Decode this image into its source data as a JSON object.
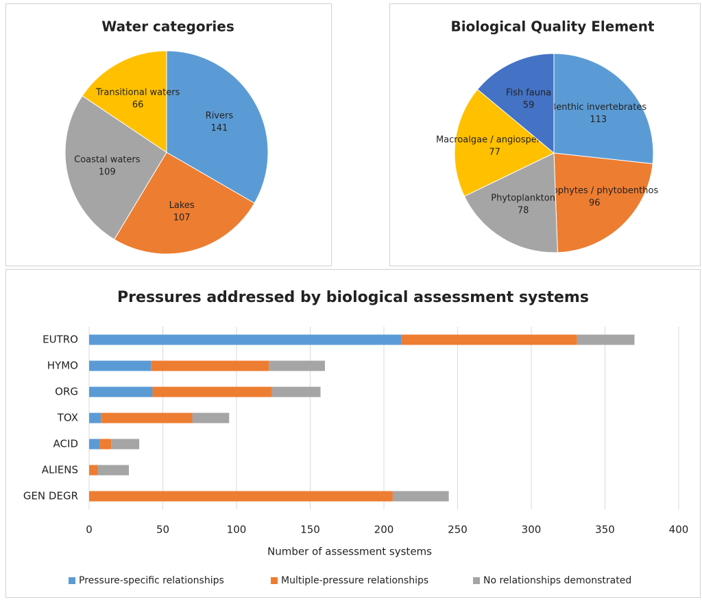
{
  "chart_data": [
    {
      "type": "pie",
      "title": "Water categories",
      "categories": [
        "Rivers",
        "Lakes",
        "Coastal waters",
        "Transitional waters"
      ],
      "values": [
        141,
        107,
        109,
        66
      ],
      "colors": [
        "#5b9bd5",
        "#ed7d31",
        "#a5a5a5",
        "#ffc000"
      ]
    },
    {
      "type": "pie",
      "title": "Biological Quality Element",
      "categories": [
        "Benthic invertebrates",
        "Macrophytes / phytobenthos",
        "Phytoplankton",
        "Macroalgae / angiosperms",
        "Fish fauna"
      ],
      "values": [
        113,
        96,
        78,
        77,
        59
      ],
      "colors": [
        "#5b9bd5",
        "#ed7d31",
        "#a5a5a5",
        "#ffc000",
        "#4472c4"
      ]
    },
    {
      "type": "hbar_stacked",
      "title": "Pressures addressed by biological assessment systems",
      "categories": [
        "EUTRO",
        "HYMO",
        "ORG",
        "TOX",
        "ACID",
        "ALIENS",
        "GEN DEGR"
      ],
      "series": [
        {
          "name": "Pressure-specific relationships",
          "color": "#5b9bd5",
          "values": [
            212,
            42,
            43,
            8,
            7,
            0,
            0
          ]
        },
        {
          "name": "Multiple-pressure relationships",
          "color": "#ed7d31",
          "values": [
            119,
            80,
            81,
            62,
            8,
            6,
            206
          ]
        },
        {
          "name": "No relationships demonstrated",
          "color": "#a5a5a5",
          "values": [
            39,
            38,
            33,
            25,
            19,
            21,
            38
          ]
        }
      ],
      "x_label": "Number of assessment systems",
      "xlim": [
        0,
        400
      ],
      "xticks": [
        0,
        50,
        100,
        150,
        200,
        250,
        300,
        350,
        400
      ],
      "grid": true,
      "legend": "bottom"
    }
  ]
}
